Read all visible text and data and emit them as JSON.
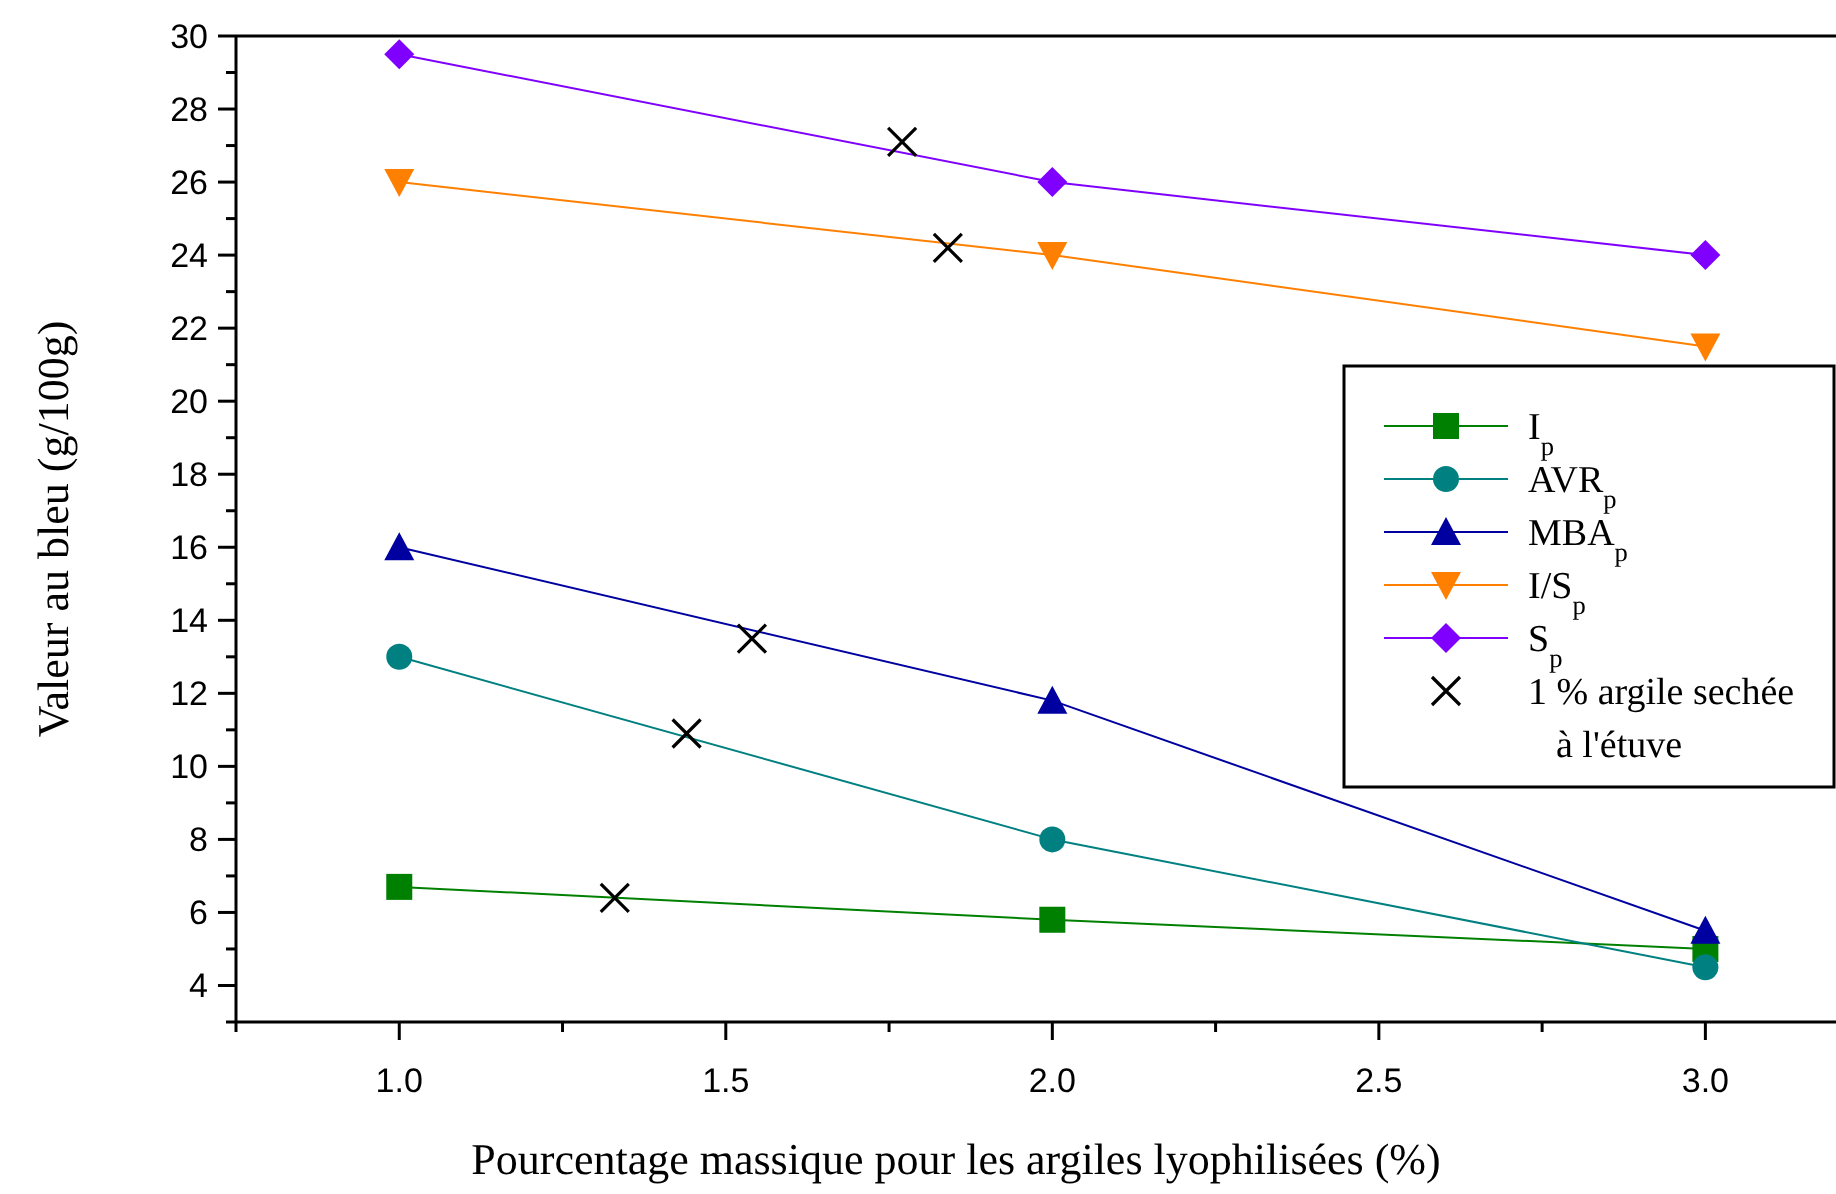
{
  "chart_data": {
    "type": "line",
    "xlabel": "Pourcentage massique pour les argiles lyophilisées (%)",
    "ylabel": "Valeur au bleu (g/100g)",
    "x": [
      1,
      2,
      3
    ],
    "xlim": [
      0.75,
      3.2
    ],
    "xticks": [
      {
        "value": 0.75,
        "label": null
      },
      {
        "value": 1,
        "label": "1.0"
      },
      {
        "value": 1.25,
        "label": null
      },
      {
        "value": 1.5,
        "label": "1.5"
      },
      {
        "value": 1.75,
        "label": null
      },
      {
        "value": 2,
        "label": "2.0"
      },
      {
        "value": 2.25,
        "label": null
      },
      {
        "value": 2.5,
        "label": "2.5"
      },
      {
        "value": 2.75,
        "label": null
      },
      {
        "value": 3,
        "label": "3.0"
      }
    ],
    "ylim": [
      3,
      30
    ],
    "yticks": [
      {
        "value": 3,
        "label": null
      },
      4,
      {
        "value": 5,
        "label": null
      },
      6,
      {
        "value": 7,
        "label": null
      },
      8,
      {
        "value": 9,
        "label": null
      },
      10,
      {
        "value": 11,
        "label": null
      },
      12,
      {
        "value": 13,
        "label": null
      },
      14,
      {
        "value": 15,
        "label": null
      },
      16,
      {
        "value": 17,
        "label": null
      },
      18,
      {
        "value": 19,
        "label": null
      },
      20,
      {
        "value": 21,
        "label": null
      },
      22,
      {
        "value": 23,
        "label": null
      },
      24,
      {
        "value": 25,
        "label": null
      },
      26,
      {
        "value": 27,
        "label": null
      },
      28,
      {
        "value": 29,
        "label": null
      },
      30
    ],
    "grid": false,
    "legend": "right",
    "line_style": "solid",
    "series": [
      {
        "name": "I$_{p}$",
        "color": "#008000",
        "marker": "square",
        "values": [
          6.7,
          5.8,
          5.0
        ]
      },
      {
        "name": "AVR$_{p}$",
        "color": "#008080",
        "marker": "circle",
        "values": [
          13,
          8,
          4.5
        ]
      },
      {
        "name": "MBA$_{p}$",
        "color": "#0000a0",
        "marker": "triangle",
        "values": [
          16,
          11.8,
          5.5
        ]
      },
      {
        "name": "I/S$_{p}$",
        "color": "#ff8000",
        "marker": "triangle-down",
        "values": [
          26,
          24,
          21.5
        ]
      },
      {
        "name": "S$_{p}$",
        "color": "#8000ff",
        "marker": "diamond",
        "values": [
          29.5,
          26,
          24
        ]
      },
      {
        "name": "1 % argile sechée à l'étuve",
        "type": "scatter",
        "color": "#000000",
        "marker": "cross",
        "x": [
          1.33,
          1.44,
          1.54,
          1.77,
          1.84
        ],
        "values": [
          6.4,
          10.9,
          13.5,
          27.1,
          24.2
        ]
      }
    ]
  }
}
